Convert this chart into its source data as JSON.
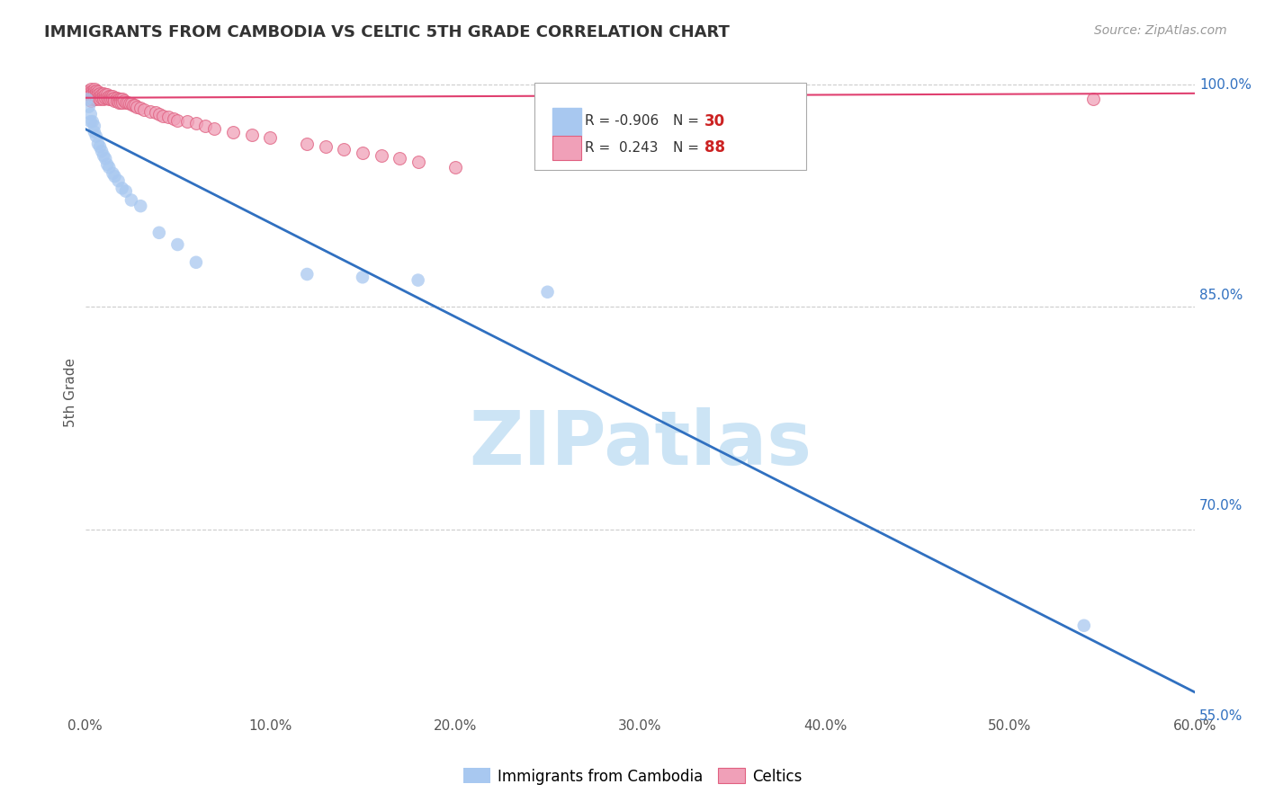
{
  "title": "IMMIGRANTS FROM CAMBODIA VS CELTIC 5TH GRADE CORRELATION CHART",
  "source": "Source: ZipAtlas.com",
  "ylabel": "5th Grade",
  "xlim": [
    0.0,
    0.6
  ],
  "ylim": [
    0.575,
    1.01
  ],
  "blue_R": -0.906,
  "blue_N": 30,
  "pink_R": 0.243,
  "pink_N": 88,
  "blue_color": "#a8c8f0",
  "pink_color": "#f0a0b8",
  "pink_edge_color": "#e06080",
  "blue_line_color": "#3070c0",
  "pink_line_color": "#e04070",
  "grid_color": "#cccccc",
  "background_color": "#ffffff",
  "watermark": "ZIPatlas",
  "watermark_color": "#cce4f5",
  "blue_scatter_x": [
    0.001,
    0.002,
    0.003,
    0.003,
    0.004,
    0.005,
    0.005,
    0.006,
    0.007,
    0.008,
    0.009,
    0.01,
    0.011,
    0.012,
    0.013,
    0.015,
    0.016,
    0.018,
    0.02,
    0.022,
    0.025,
    0.03,
    0.04,
    0.05,
    0.06,
    0.12,
    0.15,
    0.18,
    0.25,
    0.54
  ],
  "blue_scatter_y": [
    0.99,
    0.985,
    0.98,
    0.975,
    0.975,
    0.972,
    0.968,
    0.965,
    0.96,
    0.958,
    0.955,
    0.952,
    0.95,
    0.946,
    0.944,
    0.94,
    0.938,
    0.935,
    0.93,
    0.928,
    0.922,
    0.918,
    0.9,
    0.892,
    0.88,
    0.872,
    0.87,
    0.868,
    0.86,
    0.635
  ],
  "pink_scatter_x": [
    0.001,
    0.001,
    0.001,
    0.002,
    0.002,
    0.002,
    0.002,
    0.003,
    0.003,
    0.003,
    0.003,
    0.003,
    0.004,
    0.004,
    0.004,
    0.004,
    0.005,
    0.005,
    0.005,
    0.005,
    0.006,
    0.006,
    0.006,
    0.006,
    0.007,
    0.007,
    0.007,
    0.008,
    0.008,
    0.008,
    0.009,
    0.009,
    0.01,
    0.01,
    0.01,
    0.011,
    0.011,
    0.012,
    0.012,
    0.013,
    0.013,
    0.014,
    0.014,
    0.015,
    0.015,
    0.016,
    0.016,
    0.017,
    0.017,
    0.018,
    0.018,
    0.019,
    0.019,
    0.02,
    0.02,
    0.021,
    0.022,
    0.023,
    0.024,
    0.025,
    0.026,
    0.027,
    0.028,
    0.03,
    0.032,
    0.035,
    0.038,
    0.04,
    0.042,
    0.045,
    0.048,
    0.05,
    0.055,
    0.06,
    0.065,
    0.07,
    0.08,
    0.09,
    0.1,
    0.12,
    0.13,
    0.14,
    0.15,
    0.16,
    0.17,
    0.18,
    0.2,
    0.545
  ],
  "pink_scatter_y": [
    0.995,
    0.993,
    0.991,
    0.996,
    0.994,
    0.992,
    0.99,
    0.997,
    0.995,
    0.993,
    0.991,
    0.989,
    0.996,
    0.994,
    0.992,
    0.99,
    0.997,
    0.995,
    0.993,
    0.991,
    0.996,
    0.994,
    0.992,
    0.99,
    0.995,
    0.993,
    0.991,
    0.994,
    0.992,
    0.99,
    0.993,
    0.991,
    0.994,
    0.992,
    0.99,
    0.993,
    0.991,
    0.993,
    0.991,
    0.992,
    0.99,
    0.992,
    0.99,
    0.992,
    0.99,
    0.991,
    0.989,
    0.991,
    0.989,
    0.99,
    0.988,
    0.99,
    0.988,
    0.99,
    0.988,
    0.989,
    0.988,
    0.988,
    0.987,
    0.987,
    0.986,
    0.986,
    0.985,
    0.984,
    0.983,
    0.982,
    0.981,
    0.98,
    0.979,
    0.978,
    0.977,
    0.976,
    0.975,
    0.974,
    0.972,
    0.97,
    0.968,
    0.966,
    0.964,
    0.96,
    0.958,
    0.956,
    0.954,
    0.952,
    0.95,
    0.948,
    0.944,
    0.99
  ],
  "blue_trendline_x": [
    0.0,
    0.6
  ],
  "blue_trendline_y": [
    0.97,
    0.59
  ],
  "pink_trendline_x": [
    0.0,
    0.6
  ],
  "pink_trendline_y": [
    0.991,
    0.994
  ]
}
